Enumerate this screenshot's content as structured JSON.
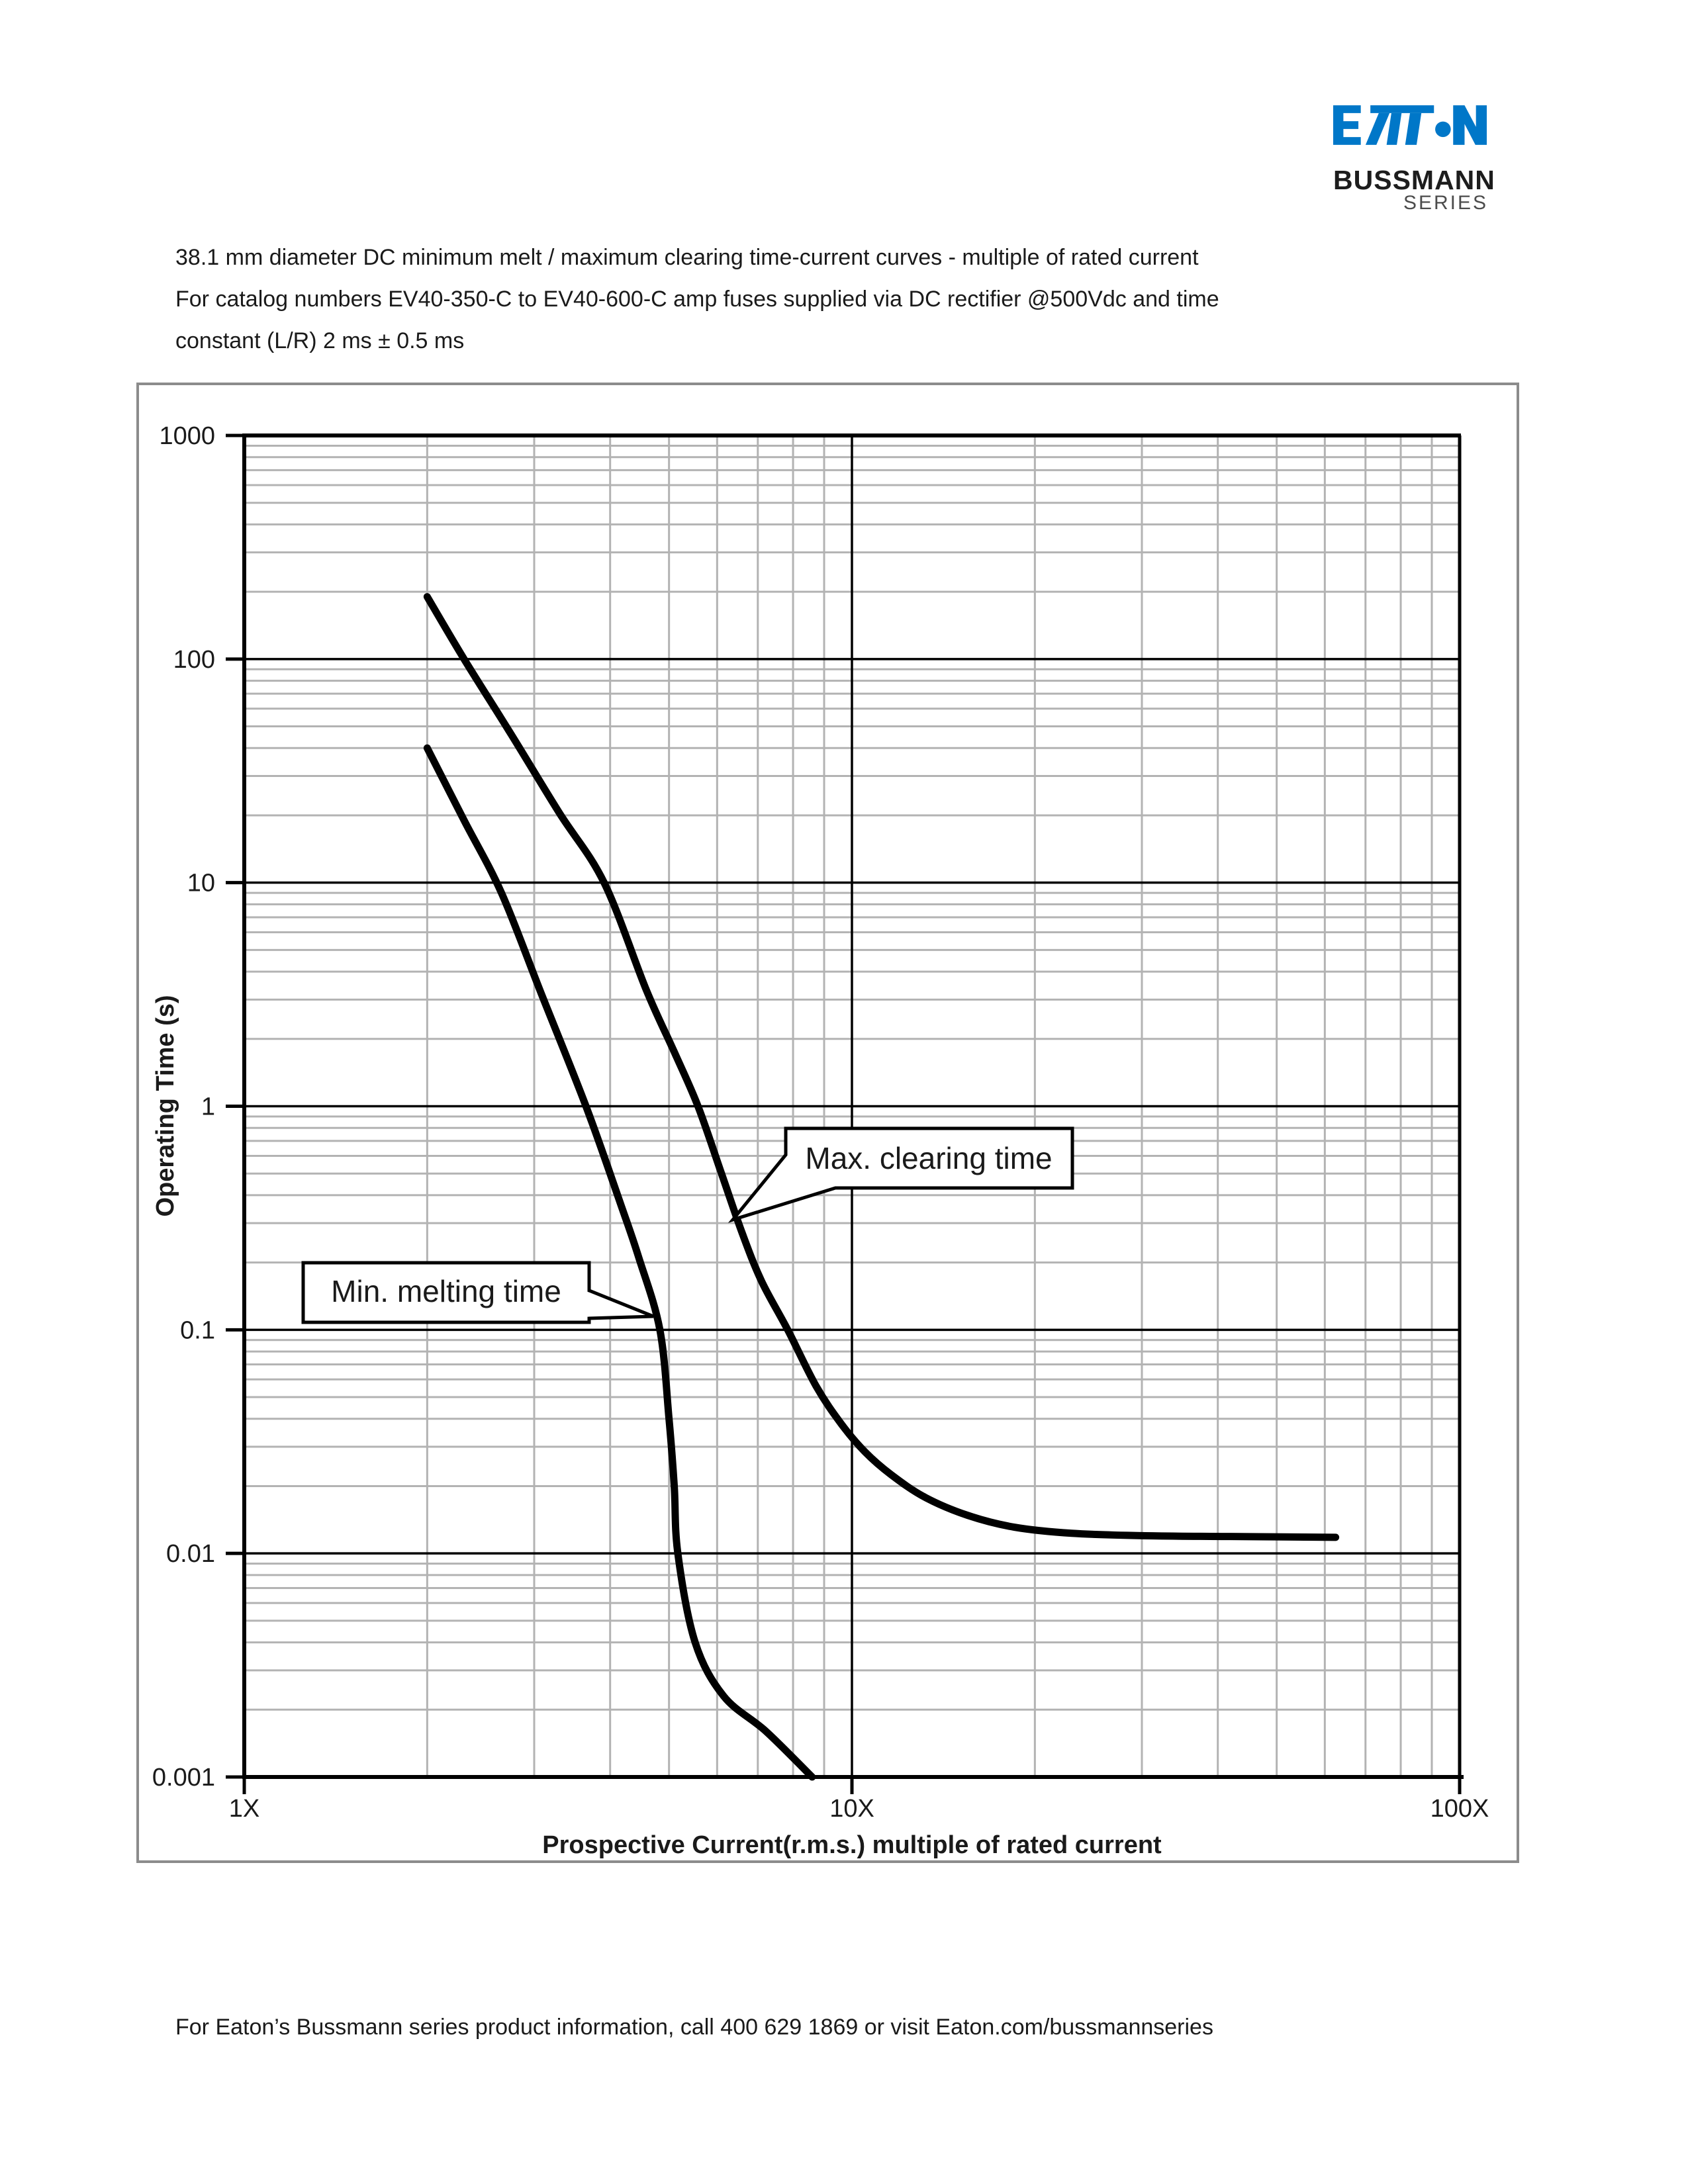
{
  "header": {
    "logo": {
      "brand": "EATON",
      "bussmann": "BUSSMANN",
      "series": "SERIES",
      "brand_color": "#0077c8"
    },
    "title_lines": [
      "38.1 mm diameter DC minimum melt / maximum clearing time-current curves - multiple of rated current",
      "For catalog numbers EV40-350-C to EV40-600-C amp fuses supplied via DC rectifier @500Vdc and time",
      "constant (L/R) 2 ms ± 0.5 ms"
    ]
  },
  "chart_data": {
    "type": "line",
    "title": "",
    "xlabel": "Prospective Current(r.m.s.) multiple of rated current",
    "ylabel": "Operating Time (s)",
    "x_scale": "log",
    "y_scale": "log",
    "xlim": [
      1,
      100
    ],
    "ylim": [
      0.001,
      1000
    ],
    "grid": "on",
    "legend_position": "none",
    "x_ticks": [
      {
        "value": 1,
        "label": "1X"
      },
      {
        "value": 10,
        "label": "10X"
      },
      {
        "value": 100,
        "label": "100X"
      }
    ],
    "y_ticks": [
      {
        "value": 1000,
        "label": "1000"
      },
      {
        "value": 100,
        "label": "100"
      },
      {
        "value": 10,
        "label": "10"
      },
      {
        "value": 1,
        "label": "1"
      },
      {
        "value": 0.1,
        "label": "0.1"
      },
      {
        "value": 0.01,
        "label": "0.01"
      },
      {
        "value": 0.001,
        "label": "0.001"
      }
    ],
    "series": [
      {
        "name": "Min. melting time",
        "color": "#000000",
        "points": [
          [
            2.0,
            40
          ],
          [
            2.3,
            19
          ],
          [
            2.65,
            9
          ],
          [
            3.08,
            3.2
          ],
          [
            3.65,
            1
          ],
          [
            4.17,
            0.36
          ],
          [
            4.46,
            0.21
          ],
          [
            4.83,
            0.1
          ],
          [
            5.0,
            0.04
          ],
          [
            5.1,
            0.02
          ],
          [
            5.17,
            0.01
          ],
          [
            5.52,
            0.004
          ],
          [
            6.15,
            0.0023
          ],
          [
            7.22,
            0.0016
          ],
          [
            8.6,
            0.001
          ]
        ]
      },
      {
        "name": "Max. clearing time",
        "color": "#000000",
        "points": [
          [
            2.0,
            190
          ],
          [
            2.3,
            100
          ],
          [
            2.75,
            46
          ],
          [
            3.3,
            20.5
          ],
          [
            3.91,
            10
          ],
          [
            4.59,
            3.3
          ],
          [
            5.1,
            1.75
          ],
          [
            5.58,
            1
          ],
          [
            6.1,
            0.5
          ],
          [
            6.6,
            0.27
          ],
          [
            7.1,
            0.165
          ],
          [
            7.84,
            0.1
          ],
          [
            8.73,
            0.056
          ],
          [
            9.6,
            0.038
          ],
          [
            10.5,
            0.0285
          ],
          [
            11.6,
            0.0225
          ],
          [
            13.2,
            0.0178
          ],
          [
            15.5,
            0.0148
          ],
          [
            18.5,
            0.0131
          ],
          [
            23,
            0.0123
          ],
          [
            30,
            0.012
          ],
          [
            42,
            0.0119
          ],
          [
            62.5,
            0.0118
          ]
        ]
      }
    ],
    "annotations": [
      {
        "label": "Min. melting time",
        "points_to": "Min. melting time",
        "anchor_x": 4.76,
        "anchor_t": 0.116
      },
      {
        "label": "Max. clearing time",
        "points_to": "Max. clearing time",
        "anchor_x": 6.45,
        "anchor_t": 0.31
      }
    ],
    "colors": {
      "curve": "#000000",
      "major_grid": "#000000",
      "minor_grid": "#b3b3b3",
      "frame_border": "#8c8c8c"
    }
  },
  "footer": {
    "text": "For Eaton’s Bussmann series product information, call 400 629 1869 or visit Eaton.com/bussmannseries"
  }
}
